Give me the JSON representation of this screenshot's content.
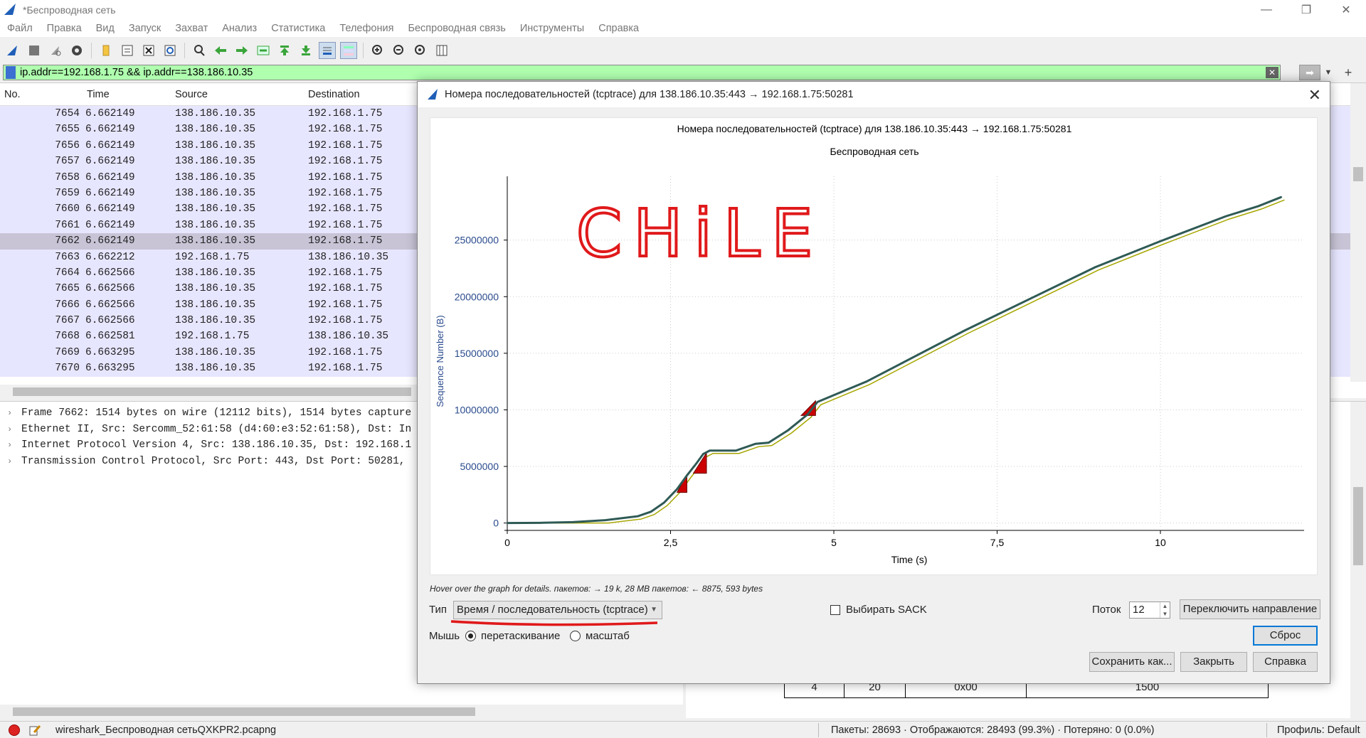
{
  "window": {
    "title": "*Беспроводная сеть",
    "minimize": "—",
    "restore": "❐",
    "close": "✕"
  },
  "menu": [
    "Файл",
    "Правка",
    "Вид",
    "Запуск",
    "Захват",
    "Анализ",
    "Статистика",
    "Телефония",
    "Беспроводная связь",
    "Инструменты",
    "Справка"
  ],
  "toolbar_icons": [
    "shark-fin-start-icon",
    "stop-icon",
    "restart-icon",
    "options-gear-icon",
    "open-folder-icon",
    "save-file-icon",
    "close-file-icon",
    "reload-icon",
    "find-icon",
    "go-back-icon",
    "go-forward-icon",
    "go-to-packet-icon",
    "go-first-icon",
    "go-last-icon",
    "autoscroll-icon",
    "colorize-icon",
    "zoom-in-icon",
    "zoom-out-icon",
    "zoom-normal-icon",
    "resize-columns-icon"
  ],
  "filter": {
    "value": "ip.addr==192.168.1.75 && ip.addr==138.186.10.35",
    "bg_color": "#afffaf"
  },
  "packet_list": {
    "columns": [
      "No.",
      "Time",
      "Source",
      "Destination"
    ],
    "rows": [
      {
        "no": "7654",
        "time": "6.662149",
        "src": "138.186.10.35",
        "dst": "192.168.1.75"
      },
      {
        "no": "7655",
        "time": "6.662149",
        "src": "138.186.10.35",
        "dst": "192.168.1.75"
      },
      {
        "no": "7656",
        "time": "6.662149",
        "src": "138.186.10.35",
        "dst": "192.168.1.75"
      },
      {
        "no": "7657",
        "time": "6.662149",
        "src": "138.186.10.35",
        "dst": "192.168.1.75"
      },
      {
        "no": "7658",
        "time": "6.662149",
        "src": "138.186.10.35",
        "dst": "192.168.1.75"
      },
      {
        "no": "7659",
        "time": "6.662149",
        "src": "138.186.10.35",
        "dst": "192.168.1.75"
      },
      {
        "no": "7660",
        "time": "6.662149",
        "src": "138.186.10.35",
        "dst": "192.168.1.75"
      },
      {
        "no": "7661",
        "time": "6.662149",
        "src": "138.186.10.35",
        "dst": "192.168.1.75"
      },
      {
        "no": "7662",
        "time": "6.662149",
        "src": "138.186.10.35",
        "dst": "192.168.1.75",
        "selected": true
      },
      {
        "no": "7663",
        "time": "6.662212",
        "src": "192.168.1.75",
        "dst": "138.186.10.35"
      },
      {
        "no": "7664",
        "time": "6.662566",
        "src": "138.186.10.35",
        "dst": "192.168.1.75"
      },
      {
        "no": "7665",
        "time": "6.662566",
        "src": "138.186.10.35",
        "dst": "192.168.1.75"
      },
      {
        "no": "7666",
        "time": "6.662566",
        "src": "138.186.10.35",
        "dst": "192.168.1.75"
      },
      {
        "no": "7667",
        "time": "6.662566",
        "src": "138.186.10.35",
        "dst": "192.168.1.75"
      },
      {
        "no": "7668",
        "time": "6.662581",
        "src": "192.168.1.75",
        "dst": "138.186.10.35"
      },
      {
        "no": "7669",
        "time": "6.663295",
        "src": "138.186.10.35",
        "dst": "192.168.1.75"
      },
      {
        "no": "7670",
        "time": "6.663295",
        "src": "138.186.10.35",
        "dst": "192.168.1.75"
      }
    ],
    "row_color": "#e7e6ff"
  },
  "details": [
    "Frame 7662: 1514 bytes on wire (12112 bits), 1514 bytes capture",
    "Ethernet II, Src: Sercomm_52:61:58 (d4:60:e3:52:61:58), Dst: In",
    "Internet Protocol Version 4, Src: 138.186.10.35, Dst: 192.168.1",
    "Transmission Control Protocol, Src Port: 443, Dst Port: 50281, "
  ],
  "ip_header_table": {
    "cells": [
      "4",
      "20",
      "0x00",
      "1500"
    ]
  },
  "status": {
    "filename": "wireshark_Беспроводная сетьQXKPR2.pcapng",
    "stats": "Пакеты: 28693 · Отображаются: 28493 (99.3%) · Потеряно: 0 (0.0%)",
    "profile": "Профиль: Default"
  },
  "dialog": {
    "title": "Номера последовательностей (tcptrace) для 138.186.10.35:443 → 192.168.1.75:50281",
    "hover_text": "Hover over the graph for details. пакетов: → 19 k, 28 MB пакетов: ← 8875, 593 bytes",
    "type_label": "Тип",
    "type_value": "Время / последовательность (tcptrace)",
    "sack_label": "Выбирать SACK",
    "stream_label": "Поток",
    "stream_value": "12",
    "switch_direction": "Переключить направление",
    "mouse_label": "Мышь",
    "drag_label": "перетаскивание",
    "zoom_label": "масштаб",
    "reset": "Сброс",
    "save_as": "Сохранить как...",
    "close": "Закрыть",
    "help": "Справка",
    "annotation": "CHiLE",
    "annotation_color": "#e0191b"
  },
  "chart_data": {
    "type": "line",
    "title": "Номера последовательностей (tcptrace) для 138.186.10.35:443 → 192.168.1.75:50281",
    "subtitle": "Беспроводная сеть",
    "xlabel": "Time (s)",
    "ylabel": "Sequence Number (B)",
    "xlim": [
      0,
      12.2
    ],
    "ylim": [
      -400000,
      29000000
    ],
    "xticks": [
      0,
      2.5,
      5,
      7.5,
      10
    ],
    "xtick_labels": [
      "0",
      "2,5",
      "5",
      "7,5",
      "10"
    ],
    "yticks": [
      0,
      5000000,
      10000000,
      15000000,
      20000000,
      25000000
    ],
    "ytick_labels": [
      "0",
      "5000000",
      "10000000",
      "15000000",
      "20000000",
      "25000000"
    ],
    "grid": true,
    "series": [
      {
        "color": "#2f5a55",
        "x": [
          0,
          0.5,
          1.0,
          1.5,
          2.0,
          2.2,
          2.4,
          2.6,
          2.75,
          2.9,
          3.0,
          3.1,
          3.5,
          3.8,
          4.0,
          4.3,
          4.6,
          4.75,
          5.0,
          5.5,
          6.0,
          7.0,
          8.0,
          9.0,
          10.0,
          11.0,
          11.5,
          11.85
        ],
        "y": [
          0,
          20000,
          80000,
          250000,
          600000,
          1000000,
          1800000,
          3000000,
          4200000,
          5300000,
          6100000,
          6400000,
          6400000,
          7000000,
          7100000,
          8200000,
          9600000,
          10700000,
          11300000,
          12500000,
          14000000,
          17000000,
          19800000,
          22600000,
          24900000,
          27100000,
          28000000,
          28800000
        ]
      }
    ],
    "loss_regions": [
      {
        "x": [
          2.6,
          2.75
        ],
        "y": [
          2700000,
          4300000
        ]
      },
      {
        "x": [
          2.85,
          3.05
        ],
        "y": [
          4400000,
          6200000
        ]
      },
      {
        "x": [
          4.5,
          4.72
        ],
        "y": [
          9500000,
          10800000
        ]
      }
    ],
    "loss_color": "#cc0000",
    "window_color": "#a6a600"
  }
}
